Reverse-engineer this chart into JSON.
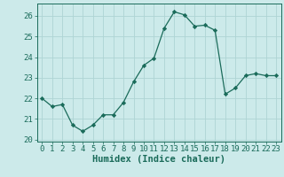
{
  "x": [
    0,
    1,
    2,
    3,
    4,
    5,
    6,
    7,
    8,
    9,
    10,
    11,
    12,
    13,
    14,
    15,
    16,
    17,
    18,
    19,
    20,
    21,
    22,
    23
  ],
  "y": [
    22.0,
    21.6,
    21.7,
    20.7,
    20.4,
    20.7,
    21.2,
    21.2,
    21.8,
    22.8,
    23.6,
    23.95,
    25.4,
    26.2,
    26.05,
    25.5,
    25.55,
    25.3,
    22.2,
    22.5,
    23.1,
    23.2,
    23.1,
    23.1
  ],
  "xlabel": "Humidex (Indice chaleur)",
  "ylim": [
    19.9,
    26.6
  ],
  "xlim": [
    -0.5,
    23.5
  ],
  "line_color": "#1a6b5a",
  "marker": "D",
  "marker_size": 2.2,
  "bg_color": "#cceaea",
  "grid_color": "#aed4d4",
  "label_color": "#1a6b5a",
  "yticks": [
    20,
    21,
    22,
    23,
    24,
    25,
    26
  ],
  "xticks": [
    0,
    1,
    2,
    3,
    4,
    5,
    6,
    7,
    8,
    9,
    10,
    11,
    12,
    13,
    14,
    15,
    16,
    17,
    18,
    19,
    20,
    21,
    22,
    23
  ],
  "tick_fontsize": 6.5,
  "xlabel_fontsize": 7.5
}
